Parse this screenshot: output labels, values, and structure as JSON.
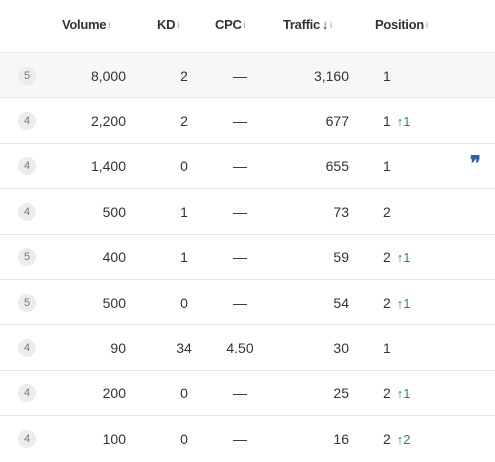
{
  "table": {
    "headers": [
      {
        "label": "Volume",
        "info": "i"
      },
      {
        "label": "KD",
        "info": "i"
      },
      {
        "label": "CPC",
        "info": "i"
      },
      {
        "label": "Traffic",
        "sort": "↓",
        "info": "i"
      },
      {
        "label": "Position",
        "info": "i"
      }
    ],
    "rows": [
      {
        "badge": "5",
        "volume": "8,000",
        "kd": "2",
        "cpc": "—",
        "traffic": "3,160",
        "position": "1"
      },
      {
        "badge": "4",
        "volume": "2,200",
        "kd": "2",
        "cpc": "—",
        "traffic": "677",
        "position": "1",
        "change": "↑1"
      },
      {
        "badge": "4",
        "volume": "1,400",
        "kd": "0",
        "cpc": "—",
        "traffic": "655",
        "position": "1",
        "quote": "❞"
      },
      {
        "badge": "4",
        "volume": "500",
        "kd": "1",
        "cpc": "—",
        "traffic": "73",
        "position": "2"
      },
      {
        "badge": "5",
        "volume": "400",
        "kd": "1",
        "cpc": "—",
        "traffic": "59",
        "position": "2",
        "change": "↑1"
      },
      {
        "badge": "5",
        "volume": "500",
        "kd": "0",
        "cpc": "—",
        "traffic": "54",
        "position": "2",
        "change": "↑1"
      },
      {
        "badge": "4",
        "volume": "90",
        "kd": "34",
        "cpc": "4.50",
        "traffic": "30",
        "position": "1"
      },
      {
        "badge": "4",
        "volume": "200",
        "kd": "0",
        "cpc": "—",
        "traffic": "25",
        "position": "2",
        "change": "↑1"
      },
      {
        "badge": "4",
        "volume": "100",
        "kd": "0",
        "cpc": "—",
        "traffic": "16",
        "position": "2",
        "change": "↑2"
      }
    ]
  }
}
